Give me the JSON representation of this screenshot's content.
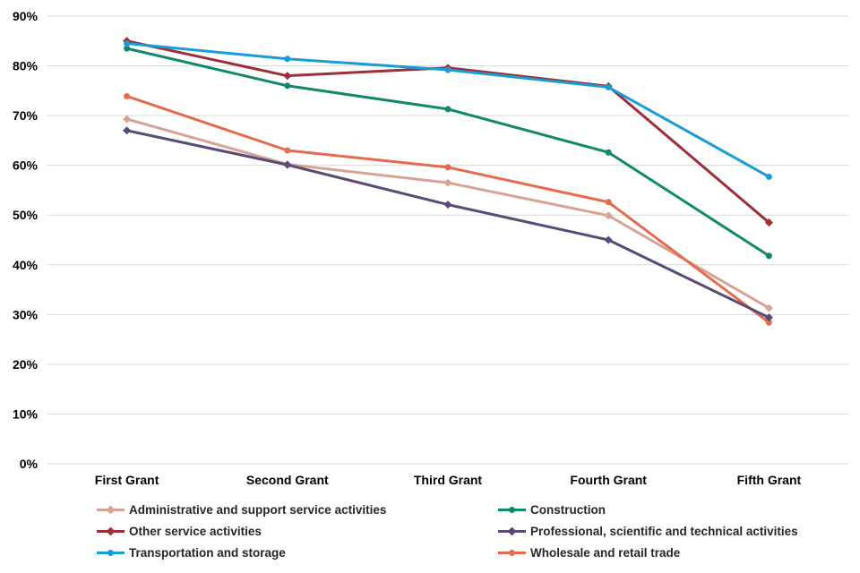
{
  "chart_data": {
    "type": "line",
    "categories": [
      "First Grant",
      "Second Grant",
      "Third Grant",
      "Fourth Grant",
      "Fifth Grant"
    ],
    "series": [
      {
        "name": "Administrative and support service activities",
        "color": "#D9A394",
        "marker": "diamond",
        "values": [
          69.3,
          60.2,
          56.5,
          49.9,
          31.3
        ]
      },
      {
        "name": "Construction",
        "color": "#10886C",
        "marker": "circle",
        "values": [
          83.5,
          76.0,
          71.3,
          62.6,
          41.8
        ]
      },
      {
        "name": "Other service activities",
        "color": "#9E2F38",
        "marker": "diamond",
        "values": [
          85.0,
          78.0,
          79.6,
          75.9,
          48.5
        ]
      },
      {
        "name": "Professional, scientific and technical activities",
        "color": "#5B4A78",
        "marker": "diamond",
        "values": [
          67.0,
          60.1,
          52.1,
          45.0,
          29.4
        ]
      },
      {
        "name": "Transportation and storage",
        "color": "#189CD8",
        "marker": "circle",
        "values": [
          84.5,
          81.4,
          79.2,
          75.7,
          57.7
        ]
      },
      {
        "name": "Wholesale and retail trade",
        "color": "#E56B4F",
        "marker": "circle",
        "values": [
          73.9,
          63.0,
          59.6,
          52.6,
          28.4
        ]
      }
    ],
    "title": "",
    "xlabel": "",
    "ylabel": "",
    "ylim": [
      0,
      90
    ],
    "y_ticks": [
      "0%",
      "10%",
      "20%",
      "30%",
      "40%",
      "50%",
      "60%",
      "70%",
      "80%",
      "90%"
    ],
    "grid": true,
    "gridline_color": "#D9D9D9",
    "legend_position": "bottom",
    "legend_text_color": "#262626"
  }
}
